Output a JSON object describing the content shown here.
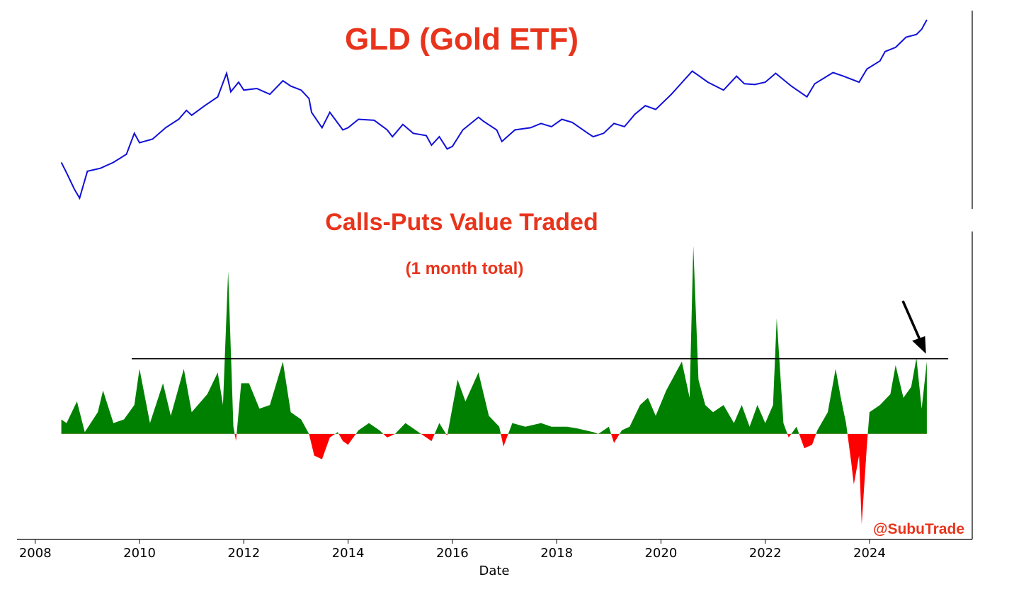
{
  "chart_data": [
    {
      "type": "line",
      "title": "GLD (Gold ETF)",
      "color": "#1010d8",
      "log": true,
      "xlim": [
        2007.65,
        2025.97
      ],
      "ylim": [
        64.5,
        294
      ],
      "x": [
        2008.5,
        2008.6,
        2008.75,
        2008.85,
        2009.0,
        2009.25,
        2009.5,
        2009.75,
        2009.9,
        2010.0,
        2010.25,
        2010.5,
        2010.75,
        2010.9,
        2011.0,
        2011.25,
        2011.5,
        2011.67,
        2011.75,
        2011.9,
        2012.0,
        2012.25,
        2012.5,
        2012.75,
        2012.9,
        2013.1,
        2013.25,
        2013.3,
        2013.5,
        2013.65,
        2013.9,
        2014.0,
        2014.2,
        2014.5,
        2014.75,
        2014.85,
        2015.05,
        2015.25,
        2015.5,
        2015.6,
        2015.75,
        2015.9,
        2016.0,
        2016.2,
        2016.5,
        2016.6,
        2016.85,
        2016.95,
        2017.2,
        2017.5,
        2017.7,
        2017.9,
        2018.1,
        2018.3,
        2018.6,
        2018.7,
        2018.9,
        2019.1,
        2019.3,
        2019.5,
        2019.7,
        2019.9,
        2020.2,
        2020.3,
        2020.6,
        2020.7,
        2020.9,
        2021.2,
        2021.45,
        2021.6,
        2021.8,
        2022.0,
        2022.2,
        2022.5,
        2022.8,
        2022.95,
        2023.3,
        2023.5,
        2023.8,
        2023.95,
        2024.2,
        2024.3,
        2024.5,
        2024.7,
        2024.9,
        2025.0,
        2025.1
      ],
      "values": [
        92,
        85,
        75,
        70,
        86,
        88,
        92,
        98,
        115,
        107,
        110,
        120,
        128,
        137,
        132,
        142,
        152,
        182,
        158,
        170,
        160,
        162,
        155,
        172,
        165,
        160,
        150,
        135,
        120,
        135,
        118,
        120,
        128,
        127,
        118,
        112,
        123,
        115,
        113,
        105,
        112,
        102,
        104,
        118,
        130,
        126,
        118,
        108,
        118,
        120,
        124,
        121,
        128,
        125,
        115,
        112,
        115,
        124,
        121,
        133,
        142,
        138,
        155,
        162,
        185,
        180,
        170,
        160,
        178,
        168,
        167,
        170,
        182,
        165,
        152,
        168,
        183,
        178,
        170,
        188,
        200,
        215,
        222,
        240,
        245,
        255,
        274
      ]
    },
    {
      "type": "area",
      "title": "Calls-Puts Value Traded",
      "subtitle": "(1 month total)",
      "annotation": "@SubuTrade",
      "xlabel": "Date",
      "color": "#008000",
      "negative_color": "#ff0000",
      "xlim": [
        2007.65,
        2025.97
      ],
      "ylim": [
        -2.92,
        5.6
      ],
      "xticks": [
        2008,
        2010,
        2012,
        2014,
        2016,
        2018,
        2020,
        2022,
        2024
      ],
      "hline": {
        "value": 2.08,
        "x": [
          2009.85,
          2025.51
        ]
      },
      "x": [
        2008.5,
        2008.6,
        2008.8,
        2008.95,
        2009.2,
        2009.3,
        2009.5,
        2009.7,
        2009.9,
        2010.0,
        2010.2,
        2010.45,
        2010.6,
        2010.85,
        2011.0,
        2011.3,
        2011.5,
        2011.6,
        2011.7,
        2011.8,
        2011.85,
        2011.95,
        2012.1,
        2012.3,
        2012.5,
        2012.75,
        2012.9,
        2013.1,
        2013.25,
        2013.35,
        2013.5,
        2013.65,
        2013.8,
        2013.9,
        2014.0,
        2014.2,
        2014.4,
        2014.6,
        2014.75,
        2014.9,
        2015.1,
        2015.3,
        2015.5,
        2015.6,
        2015.75,
        2015.9,
        2016.1,
        2016.25,
        2016.5,
        2016.7,
        2016.9,
        2016.98,
        2017.15,
        2017.4,
        2017.7,
        2017.9,
        2018.2,
        2018.4,
        2018.7,
        2018.8,
        2019.0,
        2019.1,
        2019.25,
        2019.4,
        2019.6,
        2019.75,
        2019.9,
        2020.1,
        2020.25,
        2020.4,
        2020.55,
        2020.62,
        2020.72,
        2020.85,
        2021.0,
        2021.2,
        2021.4,
        2021.55,
        2021.7,
        2021.85,
        2022.0,
        2022.15,
        2022.22,
        2022.35,
        2022.45,
        2022.6,
        2022.75,
        2022.9,
        2023.0,
        2023.2,
        2023.35,
        2023.45,
        2023.55,
        2023.65,
        2023.7,
        2023.8,
        2023.85,
        2023.95,
        2024.0,
        2024.2,
        2024.4,
        2024.5,
        2024.65,
        2024.8,
        2024.9,
        2025.0,
        2025.1
      ],
      "values": [
        0.4,
        0.3,
        0.9,
        0.05,
        0.6,
        1.2,
        0.3,
        0.4,
        0.8,
        1.8,
        0.3,
        1.4,
        0.5,
        1.8,
        0.6,
        1.1,
        1.7,
        0.8,
        4.5,
        0.2,
        -0.2,
        1.4,
        1.4,
        0.7,
        0.8,
        2.0,
        0.6,
        0.4,
        0.0,
        -0.6,
        -0.7,
        -0.1,
        0.05,
        -0.2,
        -0.3,
        0.1,
        0.3,
        0.1,
        -0.1,
        0.0,
        0.3,
        0.1,
        -0.1,
        -0.2,
        0.3,
        -0.05,
        1.5,
        0.9,
        1.7,
        0.5,
        0.2,
        -0.35,
        0.3,
        0.2,
        0.3,
        0.2,
        0.2,
        0.15,
        0.05,
        0.0,
        0.2,
        -0.25,
        0.1,
        0.2,
        0.8,
        1.0,
        0.5,
        1.2,
        1.6,
        2.0,
        1.0,
        5.2,
        1.5,
        0.8,
        0.6,
        0.8,
        0.3,
        0.8,
        0.2,
        0.8,
        0.3,
        0.8,
        3.2,
        0.3,
        -0.1,
        0.2,
        -0.4,
        -0.3,
        0.1,
        0.6,
        1.8,
        1.0,
        0.3,
        -0.8,
        -1.4,
        -0.6,
        -2.5,
        -0.3,
        0.6,
        0.8,
        1.1,
        1.9,
        1.0,
        1.3,
        2.1,
        0.7,
        2.0
      ]
    }
  ]
}
